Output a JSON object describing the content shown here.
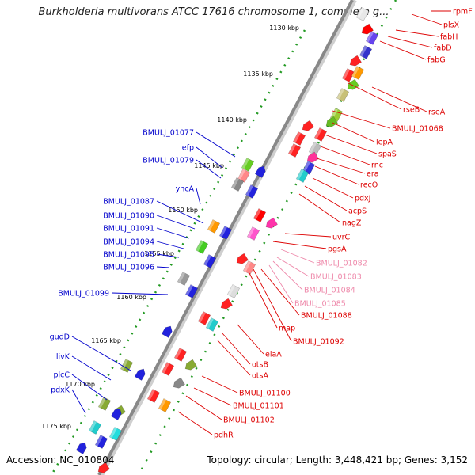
{
  "title": "Burkholderia multivorans ATCC 17616 chromosome 1, complete g...",
  "accession": "Accession: NC_010804",
  "topology": "Topology: circular; Length: 3,448,421 bp; Genes: 3,152",
  "colors": {
    "left_labels": "#0000cc",
    "right_labels": "#dd0000",
    "pink_labels": "#ee88aa",
    "backbone": "#888888",
    "ruler": "#229922"
  },
  "ruler_labels": [
    "1130 kbp",
    "1135 kbp",
    "1140 kbp",
    "1145 kbp",
    "1150 kbp",
    "1155 kbp",
    "1160 kbp",
    "1165 kbp",
    "1170 kbp",
    "1175 kbp"
  ],
  "left_genes": [
    "BMULJ_01077",
    "efp",
    "BMULJ_01079",
    "yncA",
    "BMULJ_01087",
    "BMULJ_01090",
    "BMULJ_01091",
    "BMULJ_01094",
    "BMULJ_01095",
    "BMULJ_01096",
    "BMULJ_01099",
    "gudD",
    "livK",
    "plcC",
    "pdxK"
  ],
  "right_genes": [
    "rpmF",
    "plsX",
    "fabH",
    "fabD",
    "fabG",
    "rseB",
    "rseA",
    "BMULJ_01068",
    "lepA",
    "spaS",
    "rnc",
    "era",
    "recO",
    "pdxJ",
    "acpS",
    "nagZ",
    "uvrC",
    "pgsA",
    "map",
    "BMULJ_01088",
    "BMULJ_01092",
    "elaA",
    "otsB",
    "otsA",
    "BMULJ_01100",
    "BMULJ_01101",
    "BMULJ_01102",
    "pdhR"
  ],
  "pink_genes": [
    "BMULJ_01082",
    "BMULJ_01083",
    "BMULJ_01084",
    "BMULJ_01085"
  ]
}
